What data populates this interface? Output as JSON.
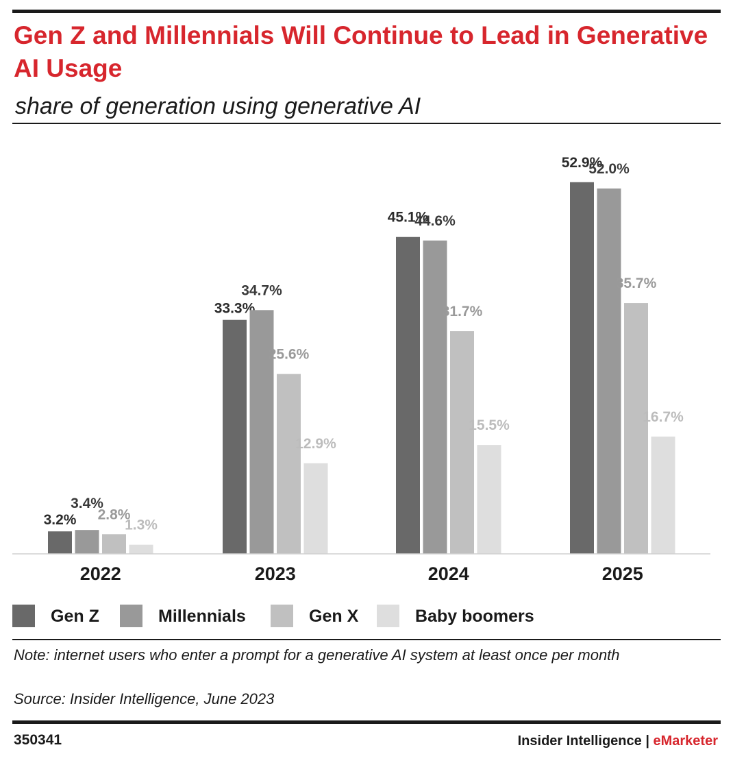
{
  "header": {
    "title": "Gen Z and Millennials Will Continue to Lead in Generative AI Usage",
    "subtitle": "share of generation using generative AI"
  },
  "chart_data": {
    "type": "bar",
    "title": "Gen Z and Millennials Will Continue to Lead in Generative AI Usage",
    "subtitle": "share of generation using generative AI",
    "categories": [
      "2022",
      "2023",
      "2024",
      "2025"
    ],
    "series": [
      {
        "name": "Gen Z",
        "values": [
          3.2,
          33.3,
          45.1,
          52.9
        ],
        "labels": [
          "3.2%",
          "33.3%",
          "45.1%",
          "52.9%"
        ],
        "color": "#696969",
        "label_color": "#2b2b2b"
      },
      {
        "name": "Millennials",
        "values": [
          3.4,
          34.7,
          44.6,
          52.0
        ],
        "labels": [
          "3.4%",
          "34.7%",
          "44.6%",
          "52.0%"
        ],
        "color": "#999999",
        "label_color": "#3a3a3a"
      },
      {
        "name": "Gen X",
        "values": [
          2.8,
          25.6,
          31.7,
          35.7
        ],
        "labels": [
          "2.8%",
          "25.6%",
          "31.7%",
          "35.7%"
        ],
        "color": "#c0c0c0",
        "label_color": "#9a9a9a"
      },
      {
        "name": "Baby boomers",
        "values": [
          1.3,
          12.9,
          15.5,
          16.7
        ],
        "labels": [
          "1.3%",
          "12.9%",
          "15.5%",
          "16.7%"
        ],
        "color": "#dedede",
        "label_color": "#bcbcbc"
      }
    ],
    "ylim": [
      0,
      60
    ],
    "grid": false,
    "legend_position": "bottom-left",
    "xlabel": "",
    "ylabel": ""
  },
  "footer": {
    "note": "Note: internet users who enter a prompt for a generative AI system at least once per month",
    "source": "Source: Insider Intelligence, June 2023",
    "chart_id": "350341",
    "brand_left": "Insider Intelligence | ",
    "brand_accent": "eMarketer"
  },
  "colors": {
    "title_red": "#d7262d",
    "text": "#1a1a1a"
  }
}
